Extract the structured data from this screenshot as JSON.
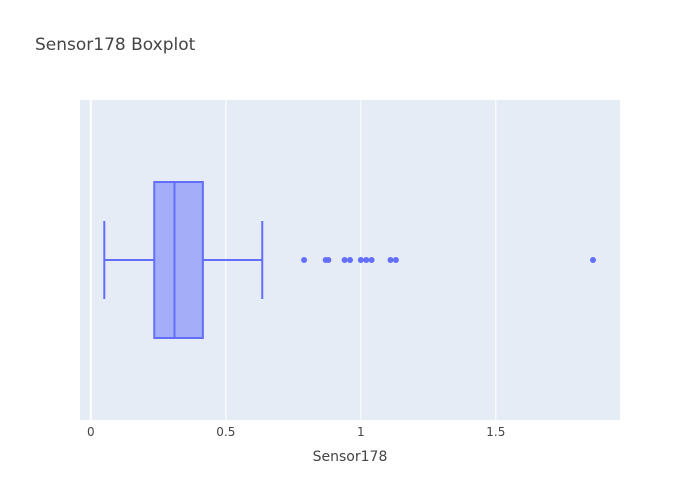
{
  "chart_data": {
    "type": "box",
    "title": "Sensor178 Boxplot",
    "xlabel": "Sensor178",
    "ylabel": "",
    "orientation": "horizontal",
    "xlim": [
      -0.04,
      1.96
    ],
    "xticks": [
      0,
      0.5,
      1,
      1.5
    ],
    "xtick_labels": [
      "0",
      "0.5",
      "1",
      "1.5"
    ],
    "grid": true,
    "box": {
      "lower_fence": 0.05,
      "q1": 0.235,
      "median": 0.31,
      "q3": 0.415,
      "upper_fence": 0.635
    },
    "outliers": [
      0.79,
      0.87,
      0.88,
      0.94,
      0.96,
      1.0,
      1.02,
      1.04,
      1.11,
      1.13,
      1.86
    ]
  },
  "colors": {
    "plot_bg": "#e5ecf6",
    "grid": "#ffffff",
    "box_line": "#636efa",
    "box_fill": "rgba(99,110,250,0.5)",
    "text": "#444444"
  }
}
